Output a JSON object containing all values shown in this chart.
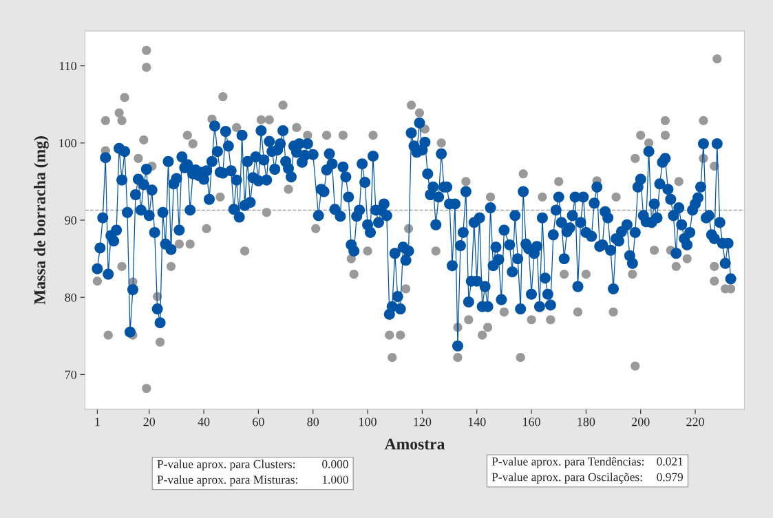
{
  "chart_data": {
    "type": "scatter",
    "xlabel": "Amostra",
    "ylabel": "Massa de borracha (mg)",
    "xlim": [
      -3.5,
      238
    ],
    "ylim": [
      65.5,
      114.5
    ],
    "xticks": [
      1,
      20,
      40,
      60,
      80,
      100,
      120,
      140,
      160,
      180,
      200,
      220
    ],
    "yticks": [
      70,
      80,
      90,
      100,
      110
    ],
    "grid": false,
    "legend": false,
    "ref_lines": [
      {
        "axis": "y",
        "value": 91.3,
        "color": "#a0a0a0",
        "line_style": "dashed"
      }
    ],
    "series": [
      {
        "color": "#999999",
        "marker": "circle",
        "x": [
          19,
          19,
          19,
          11,
          9,
          10,
          4,
          5,
          4,
          10,
          1,
          14,
          14,
          18,
          16,
          24,
          23,
          21,
          28,
          31,
          34,
          36,
          35,
          41,
          43,
          47,
          46,
          55,
          52,
          63,
          61,
          64,
          69,
          71,
          74,
          78,
          116,
          119,
          121,
          127,
          91,
          102,
          85,
          109,
          108,
          112,
          95,
          133,
          133,
          137,
          142,
          144,
          156,
          157,
          136,
          150,
          125,
          145,
          100,
          94,
          81,
          115,
          114,
          228,
          223,
          209,
          209,
          200,
          203,
          198,
          190,
          177,
          167,
          160,
          170,
          184,
          164,
          191,
          214,
          227,
          231,
          233,
          227,
          213,
          217,
          180,
          172,
          197,
          205,
          211,
          198,
          223,
          227
        ],
        "values": [
          112,
          109.8,
          68.2,
          105.9,
          103.9,
          102.9,
          102.9,
          75.1,
          99,
          84,
          82.1,
          75.1,
          82,
          100.4,
          98,
          74.2,
          80.1,
          97,
          84,
          86.9,
          101,
          99.9,
          86.9,
          88.9,
          103.1,
          106,
          93,
          86,
          102,
          91,
          103,
          103,
          104.9,
          94,
          102,
          101,
          104.9,
          103.9,
          101.8,
          100,
          101,
          101,
          101,
          72.2,
          75.1,
          75.1,
          83,
          72.2,
          76.1,
          77.1,
          75.1,
          76.1,
          72.2,
          96,
          95,
          78.1,
          86,
          93,
          86,
          85,
          88.9,
          88.9,
          81.1,
          110.9,
          102.9,
          102.9,
          101,
          101,
          100,
          71.1,
          78.1,
          78.1,
          77.1,
          77.1,
          95,
          95.1,
          93,
          93,
          95,
          82.1,
          81.1,
          81.1,
          84,
          84,
          85,
          83,
          83,
          83,
          86.1,
          86.1,
          98,
          98,
          97
        ]
      },
      {
        "type": "line",
        "color": "#0054a6",
        "marker": "circle",
        "line_style": "solid",
        "x": [
          1,
          2,
          3,
          4,
          5,
          6,
          7,
          8,
          9,
          10,
          11,
          12,
          13,
          14,
          15,
          16,
          17,
          18,
          19,
          20,
          21,
          22,
          23,
          24,
          25,
          26,
          27,
          28,
          29,
          30,
          31,
          32,
          33,
          34,
          35,
          36,
          37,
          38,
          39,
          40,
          41,
          42,
          43,
          44,
          45,
          46,
          47,
          48,
          49,
          50,
          51,
          52,
          53,
          54,
          55,
          56,
          57,
          58,
          59,
          60,
          61,
          62,
          63,
          64,
          65,
          66,
          67,
          68,
          69,
          70,
          71,
          72,
          73,
          74,
          75,
          76,
          77,
          78,
          80,
          82,
          83,
          84,
          85,
          86,
          87,
          88,
          90,
          91,
          92,
          93,
          94,
          95,
          96,
          97,
          98,
          99,
          100,
          101,
          102,
          103,
          104,
          105,
          106,
          107,
          108,
          109,
          110,
          111,
          112,
          113,
          114,
          115,
          116,
          117,
          118,
          119,
          120,
          121,
          122,
          123,
          124,
          125,
          126,
          127,
          128,
          129,
          130,
          131,
          132,
          133,
          134,
          135,
          136,
          137,
          138,
          139,
          140,
          141,
          142,
          143,
          144,
          145,
          146,
          147,
          148,
          149,
          150,
          152,
          153,
          154,
          155,
          156,
          157,
          158,
          159,
          160,
          161,
          162,
          163,
          164,
          165,
          166,
          167,
          168,
          169,
          170,
          171,
          172,
          173,
          174,
          175,
          176,
          177,
          178,
          179,
          180,
          182,
          183,
          184,
          185,
          186,
          187,
          188,
          189,
          190,
          191,
          192,
          193,
          195,
          196,
          197,
          198,
          199,
          200,
          201,
          202,
          203,
          204,
          205,
          206,
          207,
          208,
          209,
          210,
          211,
          212,
          213,
          214,
          215,
          216,
          217,
          218,
          219,
          220,
          221,
          222,
          223,
          224,
          225,
          226,
          227,
          228,
          229,
          230,
          231,
          232,
          233
        ],
        "values": [
          83.7,
          86.4,
          90.3,
          98.1,
          83.0,
          88.0,
          87.3,
          88.7,
          99.3,
          95.2,
          98.9,
          91.0,
          75.5,
          81.0,
          93.3,
          95.3,
          91.3,
          94.6,
          96.6,
          90.6,
          93.9,
          88.4,
          78.5,
          76.7,
          91.0,
          86.9,
          97.6,
          86.2,
          94.7,
          95.4,
          88.7,
          98.2,
          96.8,
          97.2,
          91.3,
          96.0,
          96.5,
          95.8,
          96.2,
          95.3,
          96.4,
          92.7,
          97.6,
          102.2,
          98.9,
          96.2,
          96.1,
          101.5,
          99.6,
          96.4,
          91.4,
          95.2,
          90.4,
          101.0,
          91.9,
          97.6,
          92.3,
          95.5,
          98.2,
          95.1,
          101.6,
          97.8,
          95.2,
          100.2,
          98.9,
          96.6,
          99.1,
          99.9,
          101.6,
          97.6,
          96.7,
          95.6,
          99.6,
          98.8,
          99.9,
          97.5,
          98.4,
          99.9,
          98.5,
          90.6,
          94.0,
          93.7,
          96.5,
          98.6,
          97.3,
          91.4,
          90.5,
          96.9,
          95.6,
          93.0,
          86.8,
          86.0,
          90.5,
          91.3,
          97.3,
          94.9,
          89.4,
          88.4,
          98.3,
          91.3,
          89.7,
          91.3,
          92.1,
          90.6,
          77.8,
          78.8,
          85.7,
          80.1,
          78.5,
          86.5,
          84.8,
          86.0,
          101.3,
          99.6,
          98.8,
          102.6,
          99.1,
          100.1,
          96.0,
          93.3,
          94.3,
          89.4,
          93.0,
          98.6,
          94.3,
          94.3,
          92.1,
          84.1,
          92.1,
          73.7,
          86.7,
          88.4,
          93.7,
          79.4,
          82.1,
          89.7,
          82.1,
          90.3,
          78.8,
          81.4,
          78.8,
          91.6,
          84.1,
          86.5,
          84.9,
          79.7,
          88.7,
          86.8,
          83.3,
          90.6,
          85.0,
          78.5,
          93.7,
          86.9,
          86.3,
          80.4,
          85.7,
          86.6,
          78.8,
          90.3,
          82.5,
          80.4,
          79.0,
          88.1,
          91.3,
          93.0,
          89.7,
          85.0,
          88.5,
          89.0,
          90.6,
          93.0,
          81.4,
          89.7,
          93.0,
          88.4,
          87.9,
          92.2,
          94.3,
          86.6,
          86.8,
          91.1,
          90.3,
          86.1,
          81.1,
          87.6,
          87.3,
          88.5,
          89.4,
          85.4,
          84.4,
          88.4,
          94.3,
          95.3,
          90.6,
          89.8,
          98.9,
          89.7,
          92.1,
          90.3,
          94.7,
          97.5,
          98.0,
          94.0,
          92.7,
          90.6,
          85.7,
          91.6,
          89.4,
          87.6,
          86.8,
          88.4,
          91.3,
          92.1,
          92.9,
          94.3,
          99.9,
          90.3,
          90.6,
          88.1,
          87.6,
          99.9,
          89.7,
          87.0,
          84.4,
          87.0,
          82.4
        ]
      }
    ],
    "annotations": [
      "P-value aprox. para Clusters: 0.000",
      "P-value aprox. para Misturas: 1.000",
      "P-value aprox. para Tendências: 0.021",
      "P-value aprox. para Oscilações: 0.979"
    ]
  }
}
